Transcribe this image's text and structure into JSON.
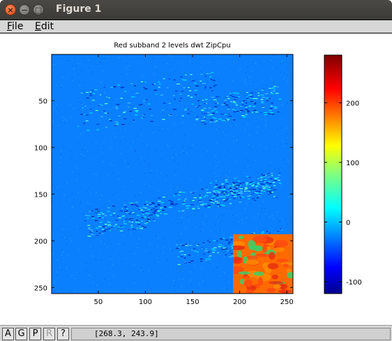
{
  "window": {
    "title": "Figure 1",
    "close_glyph": "×",
    "min_glyph": "−",
    "max_glyph": "□"
  },
  "menubar": {
    "items": [
      {
        "underline": "F",
        "rest": "ile"
      },
      {
        "underline": "E",
        "rest": "dit"
      }
    ]
  },
  "chart_data": {
    "type": "heatmap",
    "title": "Red subband 2 levels dwt ZipCpu",
    "xlim": [
      0.5,
      256.5
    ],
    "ylim": [
      256.5,
      0.5
    ],
    "xticks": [
      50,
      100,
      150,
      200,
      250
    ],
    "yticks": [
      50,
      100,
      150,
      200,
      250
    ],
    "colorbar": {
      "colormap": "jet",
      "range": [
        -120,
        280
      ],
      "ticks": [
        -100,
        0,
        100,
        200
      ]
    },
    "field_color": "#0a80ff",
    "inset": {
      "x": [
        193,
        256
      ],
      "y": [
        193,
        256
      ],
      "colors": [
        "#ff6a00",
        "#ff4a10",
        "#e83010",
        "#ff8c00",
        "#3ad06a"
      ]
    }
  },
  "toolbar": {
    "buttons": [
      {
        "label": "A",
        "enabled": true
      },
      {
        "label": "G",
        "enabled": true
      },
      {
        "label": "P",
        "enabled": true
      },
      {
        "label": "R",
        "enabled": false
      },
      {
        "label": "?",
        "enabled": true
      }
    ],
    "coords": "[268.3, 243.9]"
  }
}
